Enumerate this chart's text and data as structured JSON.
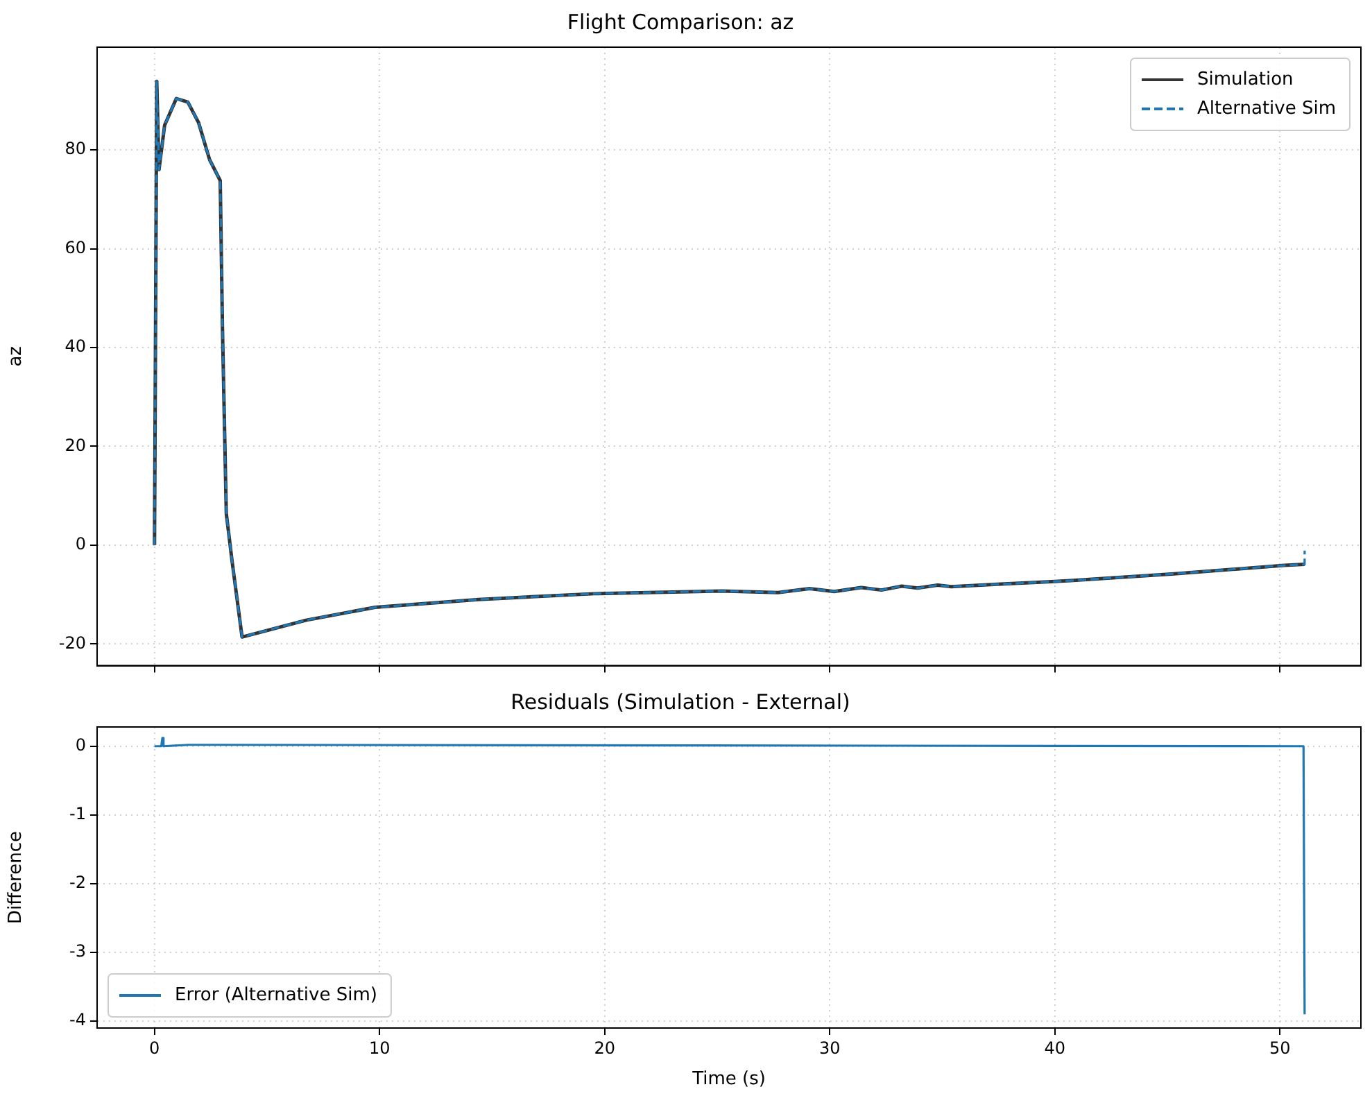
{
  "chart_data": [
    {
      "type": "line",
      "title": "Flight Comparison: az",
      "ylabel": "az",
      "xlim": [
        -2.55,
        53.6
      ],
      "xticks": [
        0,
        10,
        20,
        30,
        40,
        50
      ],
      "ylim": [
        -24.4,
        100.8
      ],
      "yticks": [
        -20,
        0,
        20,
        40,
        60,
        80
      ],
      "grid": true,
      "legend": "top right",
      "tick_labels": "y",
      "series": [
        {
          "name": "Simulation",
          "color": "#333333",
          "line_style": "solid",
          "x": [
            0,
            0.1,
            0.2,
            0.45,
            0.97,
            1.48,
            1.96,
            2.45,
            2.92,
            3.02,
            3.19,
            3.44,
            3.89,
            6.73,
            9.8,
            14.4,
            19.7,
            25.2,
            27.7,
            29.1,
            30.2,
            31.4,
            32.3,
            33.2,
            33.9,
            34.8,
            35.4,
            37.6,
            40.7,
            45.3,
            50.2,
            51.1
          ],
          "values": [
            0,
            93.9,
            76,
            85,
            90.4,
            89.7,
            85.5,
            78,
            73.8,
            43.8,
            6.4,
            -3,
            -18.6,
            -15.2,
            -12.6,
            -11,
            -9.8,
            -9.3,
            -9.6,
            -8.8,
            -9.4,
            -8.6,
            -9.1,
            -8.3,
            -8.7,
            -8.1,
            -8.4,
            -7.9,
            -7.2,
            -5.8,
            -4.1,
            -3.9
          ]
        },
        {
          "name": "Alternative Sim",
          "color": "#1f77b4",
          "line_style": "dashed",
          "x": [
            0,
            0.1,
            0.2,
            0.45,
            0.97,
            1.48,
            1.96,
            2.45,
            2.92,
            3.02,
            3.19,
            3.44,
            3.89,
            6.73,
            9.8,
            14.4,
            19.7,
            25.2,
            27.7,
            29.1,
            30.2,
            31.4,
            32.3,
            33.2,
            33.9,
            34.8,
            35.4,
            37.6,
            40.7,
            45.3,
            50.2,
            51.1,
            51.1
          ],
          "values": [
            0,
            93.9,
            76,
            85,
            90.4,
            89.7,
            85.5,
            78,
            73.8,
            43.8,
            6.4,
            -3,
            -18.6,
            -15.2,
            -12.6,
            -11,
            -9.8,
            -9.3,
            -9.6,
            -8.8,
            -9.4,
            -8.6,
            -9.1,
            -8.3,
            -8.7,
            -8.1,
            -8.4,
            -7.9,
            -7.2,
            -5.8,
            -4.1,
            -3.9,
            -1.1
          ]
        }
      ]
    },
    {
      "type": "line",
      "title": "Residuals (Simulation - External)",
      "xlabel": "Time (s)",
      "ylabel": "Difference",
      "xlim": [
        -2.55,
        53.6
      ],
      "xticks": [
        0,
        10,
        20,
        30,
        40,
        50
      ],
      "ylim": [
        -4.1,
        0.28
      ],
      "yticks": [
        -4,
        -3,
        -2,
        -1,
        0
      ],
      "grid": true,
      "legend": "bottom left",
      "series": [
        {
          "name": "Error (Alternative Sim)",
          "color": "#1f77b4",
          "line_style": "solid",
          "x": [
            0,
            0.3,
            0.35,
            0.4,
            1.5,
            2.5,
            51.05,
            51.1
          ],
          "values": [
            0,
            0,
            0.12,
            0,
            0.02,
            0.02,
            0,
            -3.9
          ]
        }
      ]
    }
  ]
}
